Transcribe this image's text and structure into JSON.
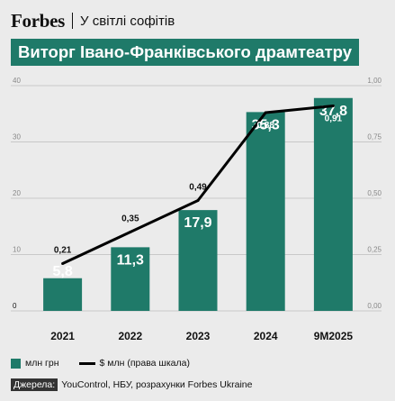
{
  "header": {
    "brand": "Forbes",
    "rubric": "У світлі софітів"
  },
  "colors": {
    "bar": "#1f7a69",
    "line": "#000000",
    "background": "#ebebeb",
    "grid": "#c8c8c8"
  },
  "chart_data": {
    "type": "bar",
    "title": "Виторг Івано-Франківського драмтеатру",
    "categories": [
      "2021",
      "2022",
      "2023",
      "2024",
      "9M2025"
    ],
    "ylim": [
      0,
      40
    ],
    "y_ticks": [
      "0",
      "10",
      "20",
      "30",
      "40"
    ],
    "y2lim": [
      0,
      1.0
    ],
    "y2_ticks": [
      "0,00",
      "0,25",
      "0,50",
      "0,75",
      "1,00"
    ],
    "grid": true,
    "series": [
      {
        "name": "млн грн",
        "type": "bar",
        "axis": "left",
        "values": [
          5.8,
          11.3,
          17.9,
          35.3,
          37.8
        ],
        "labels": [
          "5,8",
          "11,3",
          "17,9",
          "35,3",
          "37,8"
        ]
      },
      {
        "name": "$ млн (права шкала)",
        "type": "line",
        "axis": "right",
        "values": [
          0.21,
          0.35,
          0.49,
          0.88,
          0.91
        ],
        "labels": [
          "0,21",
          "0,35",
          "0,49",
          "0,88",
          "0,91"
        ]
      }
    ]
  },
  "source": {
    "label": "Джерела:",
    "text": "YouControl, НБУ, розрахунки Forbes Ukraine"
  }
}
